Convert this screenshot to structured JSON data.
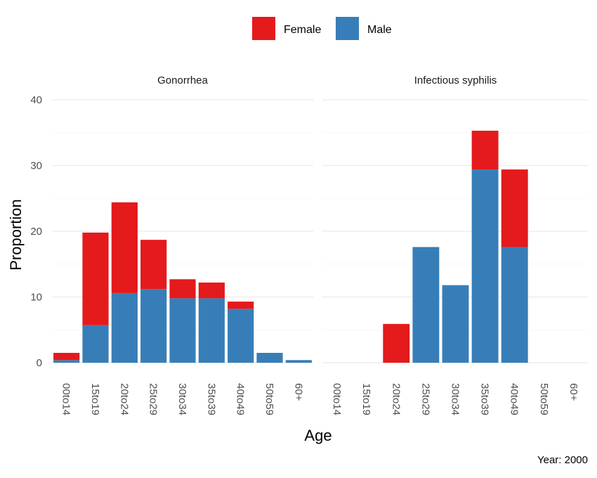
{
  "chart_data": {
    "type": "bar",
    "stacked": true,
    "ylabel": "Proportion",
    "xlabel": "Age",
    "caption": "Year: 2000",
    "ylim": [
      0,
      40
    ],
    "yticks": [
      0,
      10,
      20,
      30,
      40
    ],
    "grid": true,
    "legend": {
      "position": "top",
      "items": [
        {
          "name": "Female",
          "color": "#E41A1C"
        },
        {
          "name": "Male",
          "color": "#377EB8"
        }
      ]
    },
    "categories": [
      "00to14",
      "15to19",
      "20to24",
      "25to29",
      "30to34",
      "35to39",
      "40to49",
      "50to59",
      "60+"
    ],
    "panels": [
      {
        "title": "Gonorrhea",
        "series": [
          {
            "name": "Male",
            "values": [
              0.4,
              5.7,
              10.6,
              11.2,
              9.8,
              9.8,
              8.2,
              1.5,
              0.4
            ]
          },
          {
            "name": "Female",
            "values": [
              1.1,
              14.1,
              13.8,
              7.5,
              2.9,
              2.4,
              1.1,
              0,
              0
            ]
          }
        ]
      },
      {
        "title": "Infectious syphilis",
        "series": [
          {
            "name": "Male",
            "values": [
              0,
              0,
              0,
              17.6,
              11.8,
              29.4,
              17.6,
              0,
              0
            ]
          },
          {
            "name": "Female",
            "values": [
              0,
              0,
              5.9,
              0,
              0,
              5.9,
              11.8,
              0,
              0
            ]
          }
        ]
      }
    ]
  }
}
